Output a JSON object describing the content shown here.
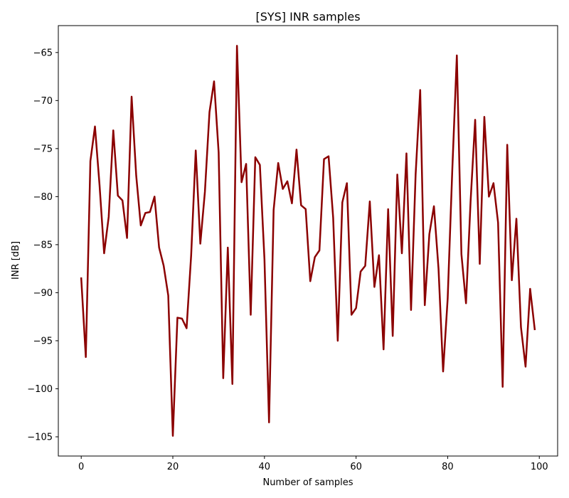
{
  "chart_data": {
    "type": "line",
    "title": "[SYS] INR samples",
    "xlabel": "Number of samples",
    "ylabel": "INR [dB]",
    "xlim": [
      -5,
      104
    ],
    "ylim": [
      -107,
      -62.2
    ],
    "xticks": [
      0,
      20,
      40,
      60,
      80,
      100
    ],
    "yticks": [
      -105,
      -100,
      -95,
      -90,
      -85,
      -80,
      -75,
      -70,
      -65
    ],
    "grid": false,
    "line_color": "#8b0000",
    "series": [
      {
        "values": [
          -88.5,
          -96.7,
          -76.3,
          -72.7,
          -78.8,
          -85.9,
          -82.1,
          -73.1,
          -79.9,
          -80.4,
          -84.3,
          -69.6,
          -77.8,
          -83.0,
          -81.7,
          -81.6,
          -80.0,
          -85.3,
          -87.2,
          -90.3,
          -104.9,
          -92.6,
          -92.7,
          -93.7,
          -86.1,
          -75.2,
          -84.9,
          -79.5,
          -71.2,
          -68.0,
          -75.4,
          -98.9,
          -85.3,
          -99.5,
          -64.3,
          -78.5,
          -76.6,
          -92.3,
          -75.9,
          -76.7,
          -86.5,
          -103.5,
          -81.4,
          -76.5,
          -79.2,
          -78.4,
          -80.7,
          -75.1,
          -80.9,
          -81.3,
          -88.8,
          -86.3,
          -85.6,
          -76.1,
          -75.8,
          -82.2,
          -95.0,
          -80.6,
          -78.6,
          -92.3,
          -91.6,
          -87.8,
          -87.2,
          -80.5,
          -89.4,
          -86.1,
          -95.9,
          -81.3,
          -94.5,
          -77.7,
          -85.9,
          -75.5,
          -91.8,
          -77.7,
          -68.9,
          -91.3,
          -83.9,
          -81.0,
          -87.5,
          -98.2,
          -90.6,
          -77.3,
          -65.3,
          -86.0,
          -91.1,
          -80.5,
          -72.0,
          -87.0,
          -71.7,
          -80.0,
          -78.6,
          -82.7,
          -99.8,
          -74.6,
          -88.7,
          -82.3,
          -93.6,
          -97.7,
          -89.6,
          -93.8
        ]
      }
    ]
  }
}
